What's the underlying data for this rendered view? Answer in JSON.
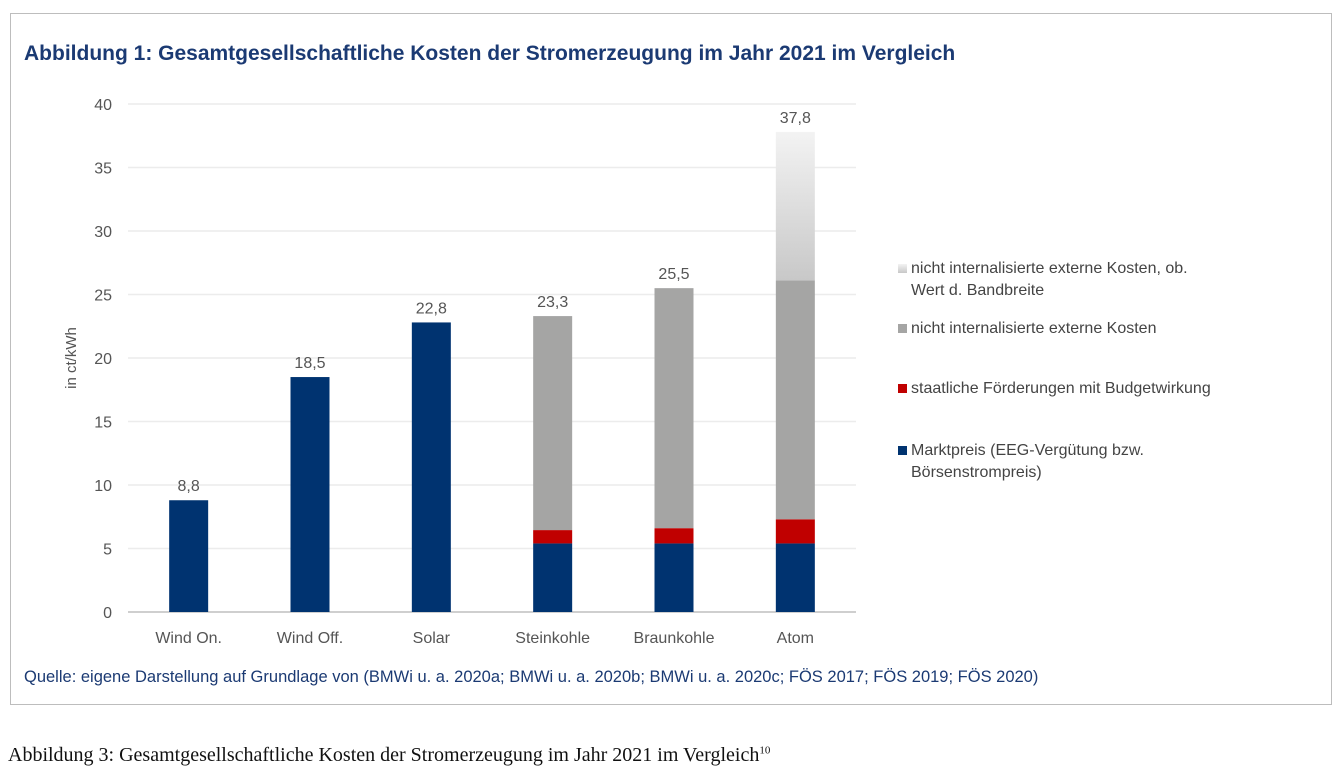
{
  "chart_data": {
    "type": "bar",
    "stacked": true,
    "title": "Abbildung 1: Gesamtgesellschaftliche Kosten der Stromerzeugung im Jahr 2021 im Vergleich",
    "ylabel": "in ct/kWh",
    "xlabel": "",
    "ylim": [
      0,
      40
    ],
    "yticks": [
      0,
      5,
      10,
      15,
      20,
      25,
      30,
      35,
      40
    ],
    "grid": true,
    "legend_position": "right",
    "categories": [
      "Wind On.",
      "Wind Off.",
      "Solar",
      "Steinkohle",
      "Braunkohle",
      "Atom"
    ],
    "totals_labels": [
      "8,8",
      "18,5",
      "22,8",
      "23,3",
      "25,5",
      "37,8"
    ],
    "series": [
      {
        "name": "Marktpreis (EEG-Vergütung bzw. Börsenstrompreis)",
        "color": "#003370",
        "values": [
          8.8,
          18.5,
          22.8,
          5.4,
          5.4,
          5.4
        ]
      },
      {
        "name": "staatliche Förderungen mit Budgetwirkung",
        "color": "#c00000",
        "values": [
          0,
          0,
          0,
          1.05,
          1.2,
          1.9
        ]
      },
      {
        "name": "nicht internalisierte externe Kosten",
        "color": "#a5a5a4",
        "values": [
          0,
          0,
          0,
          16.85,
          18.9,
          18.8
        ]
      },
      {
        "name": "nicht internalisierte externe Kosten, ob. Wert d. Bandbreite",
        "color": "#d9d9d9",
        "values": [
          0,
          0,
          0,
          0,
          0,
          11.7
        ]
      }
    ]
  },
  "source": "Quelle: eigene Darstellung auf Grundlage von (BMWi u. a. 2020a; BMWi u. a. 2020b; BMWi u. a. 2020c; FÖS 2017; FÖS 2019; FÖS 2020)",
  "caption": "Abbildung 3: Gesamtgesellschaftliche Kosten der Stromerzeugung im Jahr 2021 im Vergleich",
  "caption_footnote": "10"
}
